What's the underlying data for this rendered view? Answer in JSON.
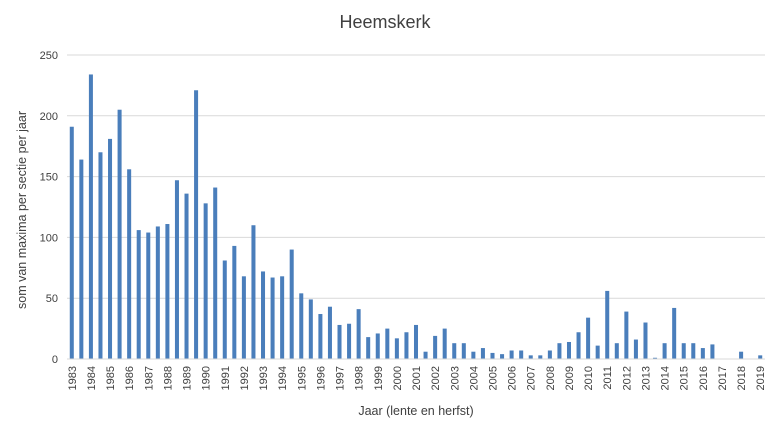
{
  "chart_data": {
    "type": "bar",
    "title": "Heemskerk",
    "xlabel": "Jaar (lente en herfst)",
    "ylabel": "som van maxima per sectie per jaar",
    "ylim": [
      0,
      250
    ],
    "yticks": [
      0,
      50,
      100,
      150,
      200,
      250
    ],
    "grid": "horizontal",
    "bar_color": "#4a7ebb",
    "year_labels": [
      "1983",
      "1984",
      "1985",
      "1986",
      "1987",
      "1988",
      "1989",
      "1990",
      "1991",
      "1992",
      "1993",
      "1994",
      "1995",
      "1996",
      "1997",
      "1998",
      "1999",
      "2000",
      "2001",
      "2002",
      "2003",
      "2004",
      "2005",
      "2006",
      "2007",
      "2008",
      "2009",
      "2010",
      "2011",
      "2012",
      "2013",
      "2014",
      "2015",
      "2016",
      "2017",
      "2018",
      "2019"
    ],
    "values": [
      191,
      164,
      234,
      170,
      181,
      205,
      156,
      106,
      104,
      109,
      111,
      147,
      136,
      221,
      128,
      141,
      81,
      93,
      68,
      110,
      72,
      67,
      68,
      90,
      54,
      49,
      37,
      43,
      28,
      29,
      41,
      18,
      21,
      25,
      17,
      22,
      28,
      6,
      19,
      25,
      13,
      13,
      6,
      9,
      5,
      4,
      7,
      7,
      3,
      3,
      7,
      13,
      14,
      22,
      34,
      11,
      56,
      13,
      39,
      16,
      30,
      1,
      13,
      42,
      13,
      13,
      9,
      12,
      0,
      0,
      6,
      0,
      3
    ]
  }
}
